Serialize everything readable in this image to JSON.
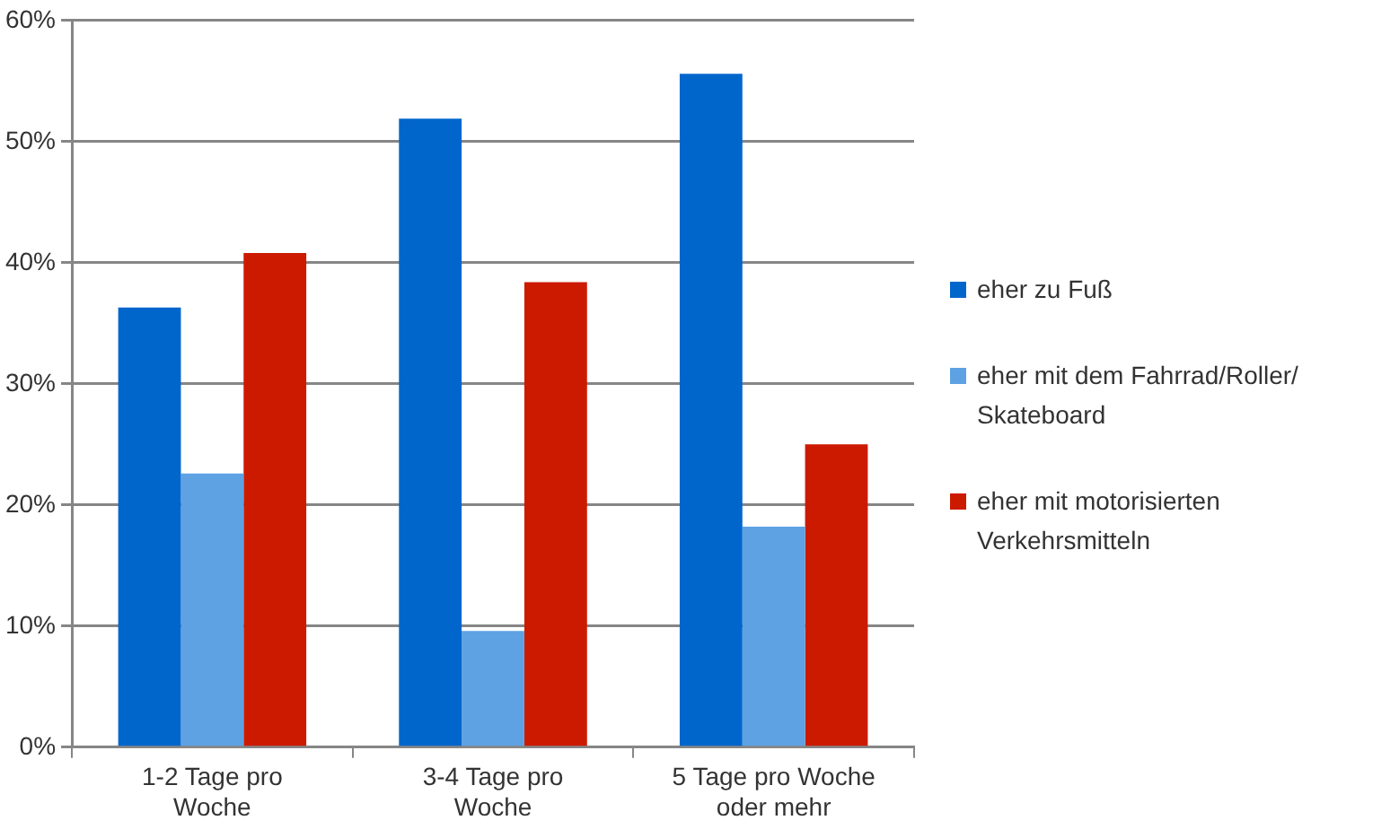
{
  "chart_data": {
    "type": "bar",
    "categories": [
      "1-2 Tage pro Woche",
      "3-4 Tage pro Woche",
      "5 Tage pro Woche oder mehr"
    ],
    "series": [
      {
        "name": "eher zu Fuß",
        "color": "#0066cc",
        "values": [
          36.3,
          51.9,
          55.6
        ]
      },
      {
        "name": "eher mit dem Fahrrad/Roller/ Skateboard",
        "color": "#5ea2e3",
        "values": [
          22.6,
          9.6,
          18.2
        ]
      },
      {
        "name": "eher mit motorisierten Verkehrsmitteln",
        "color": "#cc1a00",
        "values": [
          40.8,
          38.4,
          25.0
        ]
      }
    ],
    "ylim": [
      0,
      60
    ],
    "yticks": [
      {
        "value": 0,
        "label": "0%"
      },
      {
        "value": 10,
        "label": "10%"
      },
      {
        "value": 20,
        "label": "20%"
      },
      {
        "value": 30,
        "label": "30%"
      },
      {
        "value": 40,
        "label": "40%"
      },
      {
        "value": 50,
        "label": "50%"
      },
      {
        "value": 60,
        "label": "60%"
      }
    ],
    "grid": "y",
    "legend": "right"
  }
}
